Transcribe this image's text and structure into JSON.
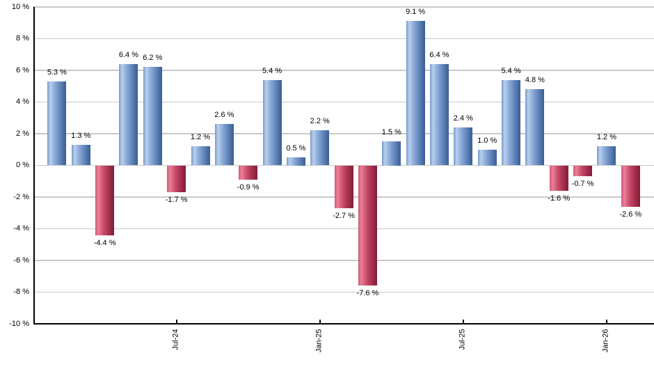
{
  "chart_data": {
    "type": "bar",
    "title": "",
    "xlabel": "",
    "ylabel": "",
    "unit": "%",
    "values": [
      5.3,
      1.3,
      -4.4,
      6.4,
      6.2,
      -1.7,
      1.2,
      2.6,
      -0.9,
      5.4,
      0.5,
      2.2,
      -2.7,
      -7.6,
      1.5,
      9.1,
      6.4,
      2.4,
      1.0,
      5.4,
      4.8,
      -1.6,
      -0.7,
      1.2,
      -2.6
    ],
    "bar_labels": [
      "5.3 %",
      "1.3 %",
      "-4.4 %",
      "6.4 %",
      "6.2 %",
      "-1.7 %",
      "1.2 %",
      "2.6 %",
      "-0.9 %",
      "5.4 %",
      "0.5 %",
      "2.2 %",
      "-2.7 %",
      "-7.6 %",
      "1.5 %",
      "9.1 %",
      "6.4 %",
      "2.4 %",
      "1.0 %",
      "5.4 %",
      "4.8 %",
      "-1.6 %",
      "-0.7 %",
      "1.2 %",
      "-2.6 %"
    ],
    "ylim": [
      -10,
      10
    ],
    "y_tick_step": 2,
    "y_tick_labels": [
      "10 %",
      "8 %",
      "6 %",
      "4 %",
      "2 %",
      "0 %",
      "-2 %",
      "-4 %",
      "-6 %",
      "-8 %",
      "-10 %"
    ],
    "x_tick_labels": [
      {
        "index": 5,
        "label": "Jul-24"
      },
      {
        "index": 11,
        "label": "Jan-25"
      },
      {
        "index": 17,
        "label": "Jul-25"
      },
      {
        "index": 23,
        "label": "Jan-26"
      }
    ],
    "grid": "horizontal",
    "legend_position": "none",
    "colors": {
      "positive_bar_gradient": [
        "#7899cc",
        "#b9cfec",
        "#88a7d8",
        "#5c81b6",
        "#3a5d94"
      ],
      "negative_bar_gradient": [
        "#d05a76",
        "#ea8098",
        "#c84a68",
        "#a12d4c",
        "#7f1f3a"
      ],
      "gridline": "#c9c9c9",
      "axis": "#000000",
      "label_text": "#000000",
      "background": "#ffffff"
    }
  }
}
